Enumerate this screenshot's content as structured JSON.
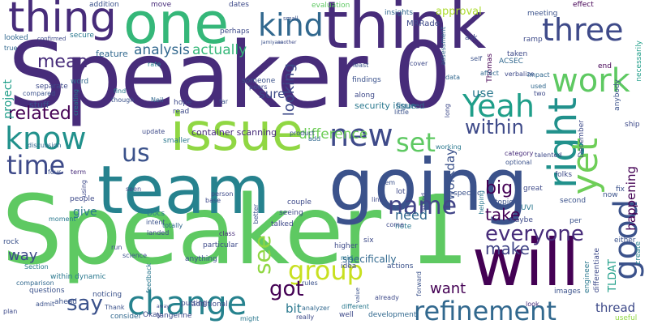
{
  "words": [
    "Speaker 0",
    "Speaker 1",
    "team",
    "going",
    "one",
    "think",
    "will",
    "issue",
    "thing",
    "kind",
    "three",
    "work",
    "Yeah",
    "right",
    "yet",
    "know",
    "us",
    "new",
    "good",
    "time",
    "change",
    "group",
    "refinement",
    "set",
    "name",
    "everyone",
    "see",
    "say",
    "got",
    "mean",
    "within",
    "analysis",
    "actually",
    "related",
    "looking",
    "difference",
    "big",
    "take",
    "make",
    "need",
    "want",
    "thread",
    "bit",
    "way",
    "give",
    "sure",
    "use",
    "approval",
    "happening",
    "workday",
    "project",
    "container scanning",
    "security issue",
    "figured",
    "TLDAT",
    "stuff",
    "feature",
    "MRRade",
    "evaluation",
    "insights",
    "meeting",
    "addition",
    "move",
    "dates",
    "effect",
    "ask",
    "ramp",
    "Thomas",
    "ACSEC",
    "end",
    "necessarily",
    "create",
    "useful",
    "ship",
    "fix",
    "December",
    "perhaps",
    "secure",
    "looked",
    "confirmed",
    "true",
    "separate",
    "compared",
    "word",
    "creating",
    "rate",
    "find",
    "though",
    "Neil",
    "hope",
    "read",
    "far",
    "update",
    "smaller",
    "discussion",
    "four",
    "term",
    "people",
    "moment",
    "rock",
    "Section",
    "comparison",
    "questions",
    "plan",
    "admit",
    "within dynamic",
    "noticing",
    "consider",
    "Thank",
    "Okay",
    "tangerine",
    "putting",
    "totally",
    "Docs",
    "intent",
    "landed",
    "particular",
    "class",
    "anything",
    "run",
    "science",
    "feedback",
    "person",
    "better",
    "talked",
    "couple",
    "seeing",
    "item",
    "link",
    "lot",
    "note",
    "asked",
    "specific",
    "topic",
    "UVI",
    "second",
    "great",
    "helping",
    "now",
    "folks",
    "optional",
    "talented",
    "category",
    "working",
    "product",
    "seen",
    "base",
    "add",
    "specifically",
    "actions",
    "higher",
    "six",
    "mid",
    "idea",
    "rules",
    "really",
    "analyzer",
    "well",
    "development",
    "different",
    "already",
    "forward",
    "come",
    "images",
    "look",
    "engineer",
    "either",
    "differentiate",
    "per",
    "maybe",
    "assessment",
    "data",
    "self",
    "affect",
    "cover",
    "least",
    "verbalize",
    "used",
    "taken",
    "anybody",
    "findings",
    "along",
    "little",
    "impact",
    "two",
    "long",
    "small",
    "another",
    "someone",
    "peers",
    "might",
    "value",
    "additional",
    "ahead",
    "using",
    "away",
    "Jamiyana",
    "Dempsey",
    "verbalize"
  ]
}
